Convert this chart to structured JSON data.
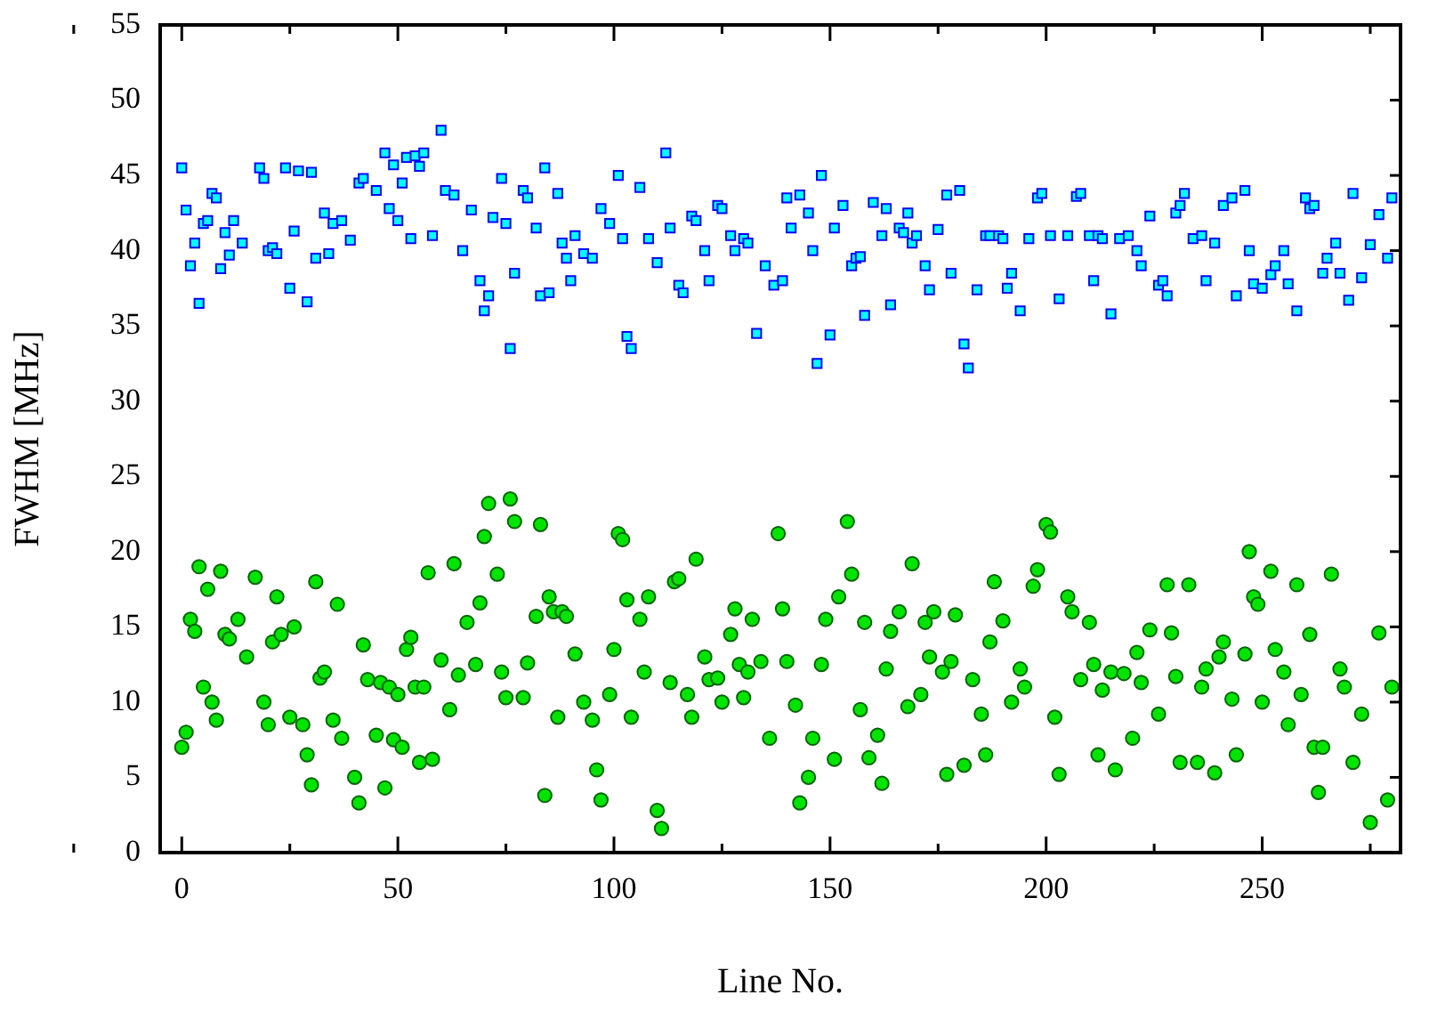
{
  "chart_data": {
    "type": "scatter",
    "xlabel": "Line No.",
    "ylabel": "FWHM [MHz]",
    "xlim": [
      -5,
      282
    ],
    "xticks": [
      0,
      50,
      100,
      150,
      200,
      250
    ],
    "ylim": [
      0,
      55
    ],
    "yticks": [
      0,
      5,
      10,
      15,
      20,
      25,
      30,
      35,
      40,
      45,
      50,
      55
    ],
    "grid": false,
    "legend": false,
    "series": [
      {
        "color": "#00ffff",
        "marker": "square",
        "x": [
          0,
          1,
          2,
          3,
          4,
          5,
          6,
          7,
          8,
          9,
          10,
          11,
          12,
          14,
          18,
          19,
          20,
          21,
          22,
          24,
          25,
          26,
          27,
          29,
          30,
          31,
          33,
          34,
          35,
          37,
          39,
          41,
          42,
          45,
          47,
          48,
          49,
          50,
          51,
          52,
          53,
          54,
          55,
          56,
          58,
          60,
          61,
          63,
          65,
          67,
          69,
          70,
          71,
          72,
          74,
          75,
          76,
          77,
          79,
          80,
          82,
          83,
          84,
          85,
          87,
          88,
          89,
          90,
          91,
          93,
          95,
          97,
          99,
          101,
          102,
          103,
          104,
          106,
          108,
          110,
          112,
          113,
          115,
          116,
          118,
          119,
          121,
          122,
          124,
          125,
          127,
          128,
          130,
          131,
          133,
          135,
          137,
          139,
          140,
          141,
          143,
          145,
          146,
          147,
          148,
          150,
          151,
          153,
          155,
          156,
          157,
          158,
          160,
          162,
          163,
          164,
          166,
          167,
          168,
          169,
          170,
          172,
          173,
          175,
          177,
          178,
          180,
          181,
          182,
          184,
          186,
          187,
          189,
          190,
          191,
          192,
          194,
          196,
          198,
          199,
          201,
          203,
          205,
          207,
          208,
          210,
          211,
          212,
          213,
          215,
          217,
          219,
          221,
          222,
          224,
          226,
          227,
          228,
          230,
          231,
          232,
          234,
          236,
          237,
          239,
          241,
          243,
          244,
          246,
          247,
          248,
          250,
          252,
          253,
          255,
          256,
          258,
          260,
          261,
          262,
          264,
          265,
          267,
          268,
          270,
          271,
          273,
          275,
          277,
          279,
          280
        ],
        "values": [
          45.5,
          42.7,
          39,
          40.5,
          36.5,
          41.8,
          42,
          43.8,
          43.5,
          38.8,
          41.2,
          39.7,
          42,
          40.5,
          45.5,
          44.8,
          40,
          40.2,
          39.8,
          45.5,
          37.5,
          41.3,
          45.3,
          36.6,
          45.2,
          39.5,
          42.5,
          39.8,
          41.8,
          42,
          40.7,
          44.5,
          44.8,
          44,
          46.5,
          42.8,
          45.7,
          42,
          44.5,
          46.2,
          40.8,
          46.3,
          45.6,
          46.5,
          41,
          48,
          44,
          43.7,
          40,
          42.7,
          38,
          36,
          37,
          42.2,
          44.8,
          41.8,
          33.5,
          38.5,
          44,
          43.5,
          41.5,
          37,
          45.5,
          37.2,
          43.8,
          40.5,
          39.5,
          38,
          41,
          39.8,
          39.5,
          42.8,
          41.8,
          45,
          40.8,
          34.3,
          33.5,
          44.2,
          40.8,
          39.2,
          46.5,
          41.5,
          37.7,
          37.2,
          42.3,
          42,
          40,
          38,
          43,
          42.8,
          41,
          40,
          40.8,
          40.5,
          34.5,
          39,
          37.7,
          38,
          43.5,
          41.5,
          43.7,
          42.5,
          40,
          32.5,
          45,
          34.4,
          41.5,
          43,
          39,
          39.5,
          39.6,
          35.7,
          43.2,
          41,
          42.8,
          36.4,
          41.5,
          41.2,
          42.5,
          40.5,
          41,
          39,
          37.4,
          41.4,
          43.7,
          38.5,
          44,
          33.8,
          32.2,
          37.4,
          41,
          41,
          41,
          40.8,
          37.5,
          38.5,
          36,
          40.8,
          43.5,
          43.8,
          41,
          36.8,
          41,
          43.6,
          43.8,
          41,
          38,
          41,
          40.8,
          35.8,
          40.8,
          41,
          40,
          39,
          42.3,
          37.7,
          38,
          37,
          42.5,
          43,
          43.8,
          40.8,
          41,
          38,
          40.5,
          43,
          43.5,
          37,
          44,
          40,
          37.8,
          37.5,
          38.4,
          39,
          40,
          37.8,
          36,
          43.5,
          42.8,
          43,
          38.5,
          39.5,
          40.5,
          38.5,
          36.7,
          43.8,
          38.2,
          40.4,
          42.4,
          39.5,
          43.5
        ]
      },
      {
        "color": "#00e400",
        "marker": "circle",
        "x": [
          0,
          1,
          2,
          3,
          4,
          5,
          6,
          7,
          8,
          9,
          10,
          11,
          13,
          15,
          17,
          19,
          20,
          21,
          22,
          23,
          25,
          26,
          28,
          29,
          30,
          31,
          32,
          33,
          35,
          36,
          37,
          40,
          41,
          42,
          43,
          45,
          46,
          47,
          48,
          49,
          50,
          51,
          52,
          53,
          54,
          55,
          56,
          57,
          58,
          60,
          62,
          63,
          64,
          66,
          68,
          69,
          70,
          71,
          73,
          74,
          75,
          76,
          77,
          79,
          80,
          82,
          83,
          84,
          85,
          86,
          87,
          88,
          89,
          91,
          93,
          95,
          96,
          97,
          99,
          100,
          101,
          102,
          103,
          104,
          106,
          107,
          108,
          110,
          111,
          113,
          114,
          115,
          117,
          118,
          119,
          121,
          122,
          124,
          125,
          127,
          128,
          129,
          130,
          131,
          132,
          134,
          136,
          138,
          139,
          140,
          142,
          143,
          145,
          146,
          148,
          149,
          151,
          152,
          154,
          155,
          157,
          158,
          159,
          161,
          162,
          163,
          164,
          166,
          168,
          169,
          171,
          172,
          173,
          174,
          176,
          177,
          178,
          179,
          181,
          183,
          185,
          186,
          187,
          188,
          190,
          192,
          194,
          195,
          197,
          198,
          200,
          201,
          202,
          203,
          205,
          206,
          208,
          210,
          211,
          212,
          213,
          215,
          216,
          218,
          220,
          221,
          222,
          224,
          226,
          228,
          229,
          230,
          231,
          233,
          235,
          236,
          237,
          239,
          240,
          241,
          243,
          244,
          246,
          247,
          248,
          249,
          250,
          252,
          253,
          255,
          256,
          258,
          259,
          261,
          262,
          263,
          264,
          266,
          268,
          269,
          271,
          273,
          275,
          277,
          279,
          280
        ],
        "values": [
          7,
          8,
          15.5,
          14.7,
          19,
          11,
          17.5,
          10,
          8.8,
          18.7,
          14.5,
          14.2,
          15.5,
          13,
          18.3,
          10,
          8.5,
          14,
          17,
          14.5,
          9,
          15,
          8.5,
          6.5,
          4.5,
          18,
          11.6,
          12,
          8.8,
          16.5,
          7.6,
          5,
          3.3,
          13.8,
          11.5,
          7.8,
          11.3,
          4.3,
          11,
          7.5,
          10.5,
          7,
          13.5,
          14.3,
          11,
          6,
          11,
          18.6,
          6.2,
          12.8,
          9.5,
          19.2,
          11.8,
          15.3,
          12.5,
          16.6,
          21,
          23.2,
          18.5,
          12,
          10.3,
          23.5,
          22,
          10.3,
          12.6,
          15.7,
          21.8,
          3.8,
          17,
          16,
          9,
          16,
          15.7,
          13.2,
          10,
          8.8,
          5.5,
          3.5,
          10.5,
          13.5,
          21.2,
          20.8,
          16.8,
          9,
          15.5,
          12,
          17,
          2.8,
          1.6,
          11.3,
          18,
          18.2,
          10.5,
          9,
          19.5,
          13,
          11.5,
          11.6,
          10,
          14.5,
          16.2,
          12.5,
          10.3,
          12,
          15.5,
          12.7,
          7.6,
          21.2,
          16.2,
          12.7,
          9.8,
          3.3,
          5,
          7.6,
          12.5,
          15.5,
          6.2,
          17,
          22,
          18.5,
          9.5,
          15.3,
          6.3,
          7.8,
          4.6,
          12.2,
          14.7,
          16,
          9.7,
          19.2,
          10.5,
          15.3,
          13,
          16,
          12,
          5.2,
          12.7,
          15.8,
          5.8,
          11.5,
          9.2,
          6.5,
          14,
          18,
          15.4,
          10,
          12.2,
          11,
          17.7,
          18.8,
          21.8,
          21.3,
          9,
          5.2,
          17,
          16,
          11.5,
          15.3,
          12.5,
          6.5,
          10.8,
          12,
          5.5,
          11.9,
          7.6,
          13.3,
          11.3,
          14.8,
          9.2,
          17.8,
          14.6,
          11.7,
          6,
          17.8,
          6,
          11,
          12.2,
          5.3,
          13,
          14,
          10.2,
          6.5,
          13.2,
          20,
          17,
          16.5,
          10,
          18.7,
          13.5,
          12,
          8.5,
          17.8,
          10.5,
          14.5,
          7,
          4,
          7,
          18.5,
          12.2,
          11,
          6,
          9.2,
          2,
          14.6,
          3.5,
          11
        ]
      }
    ]
  }
}
